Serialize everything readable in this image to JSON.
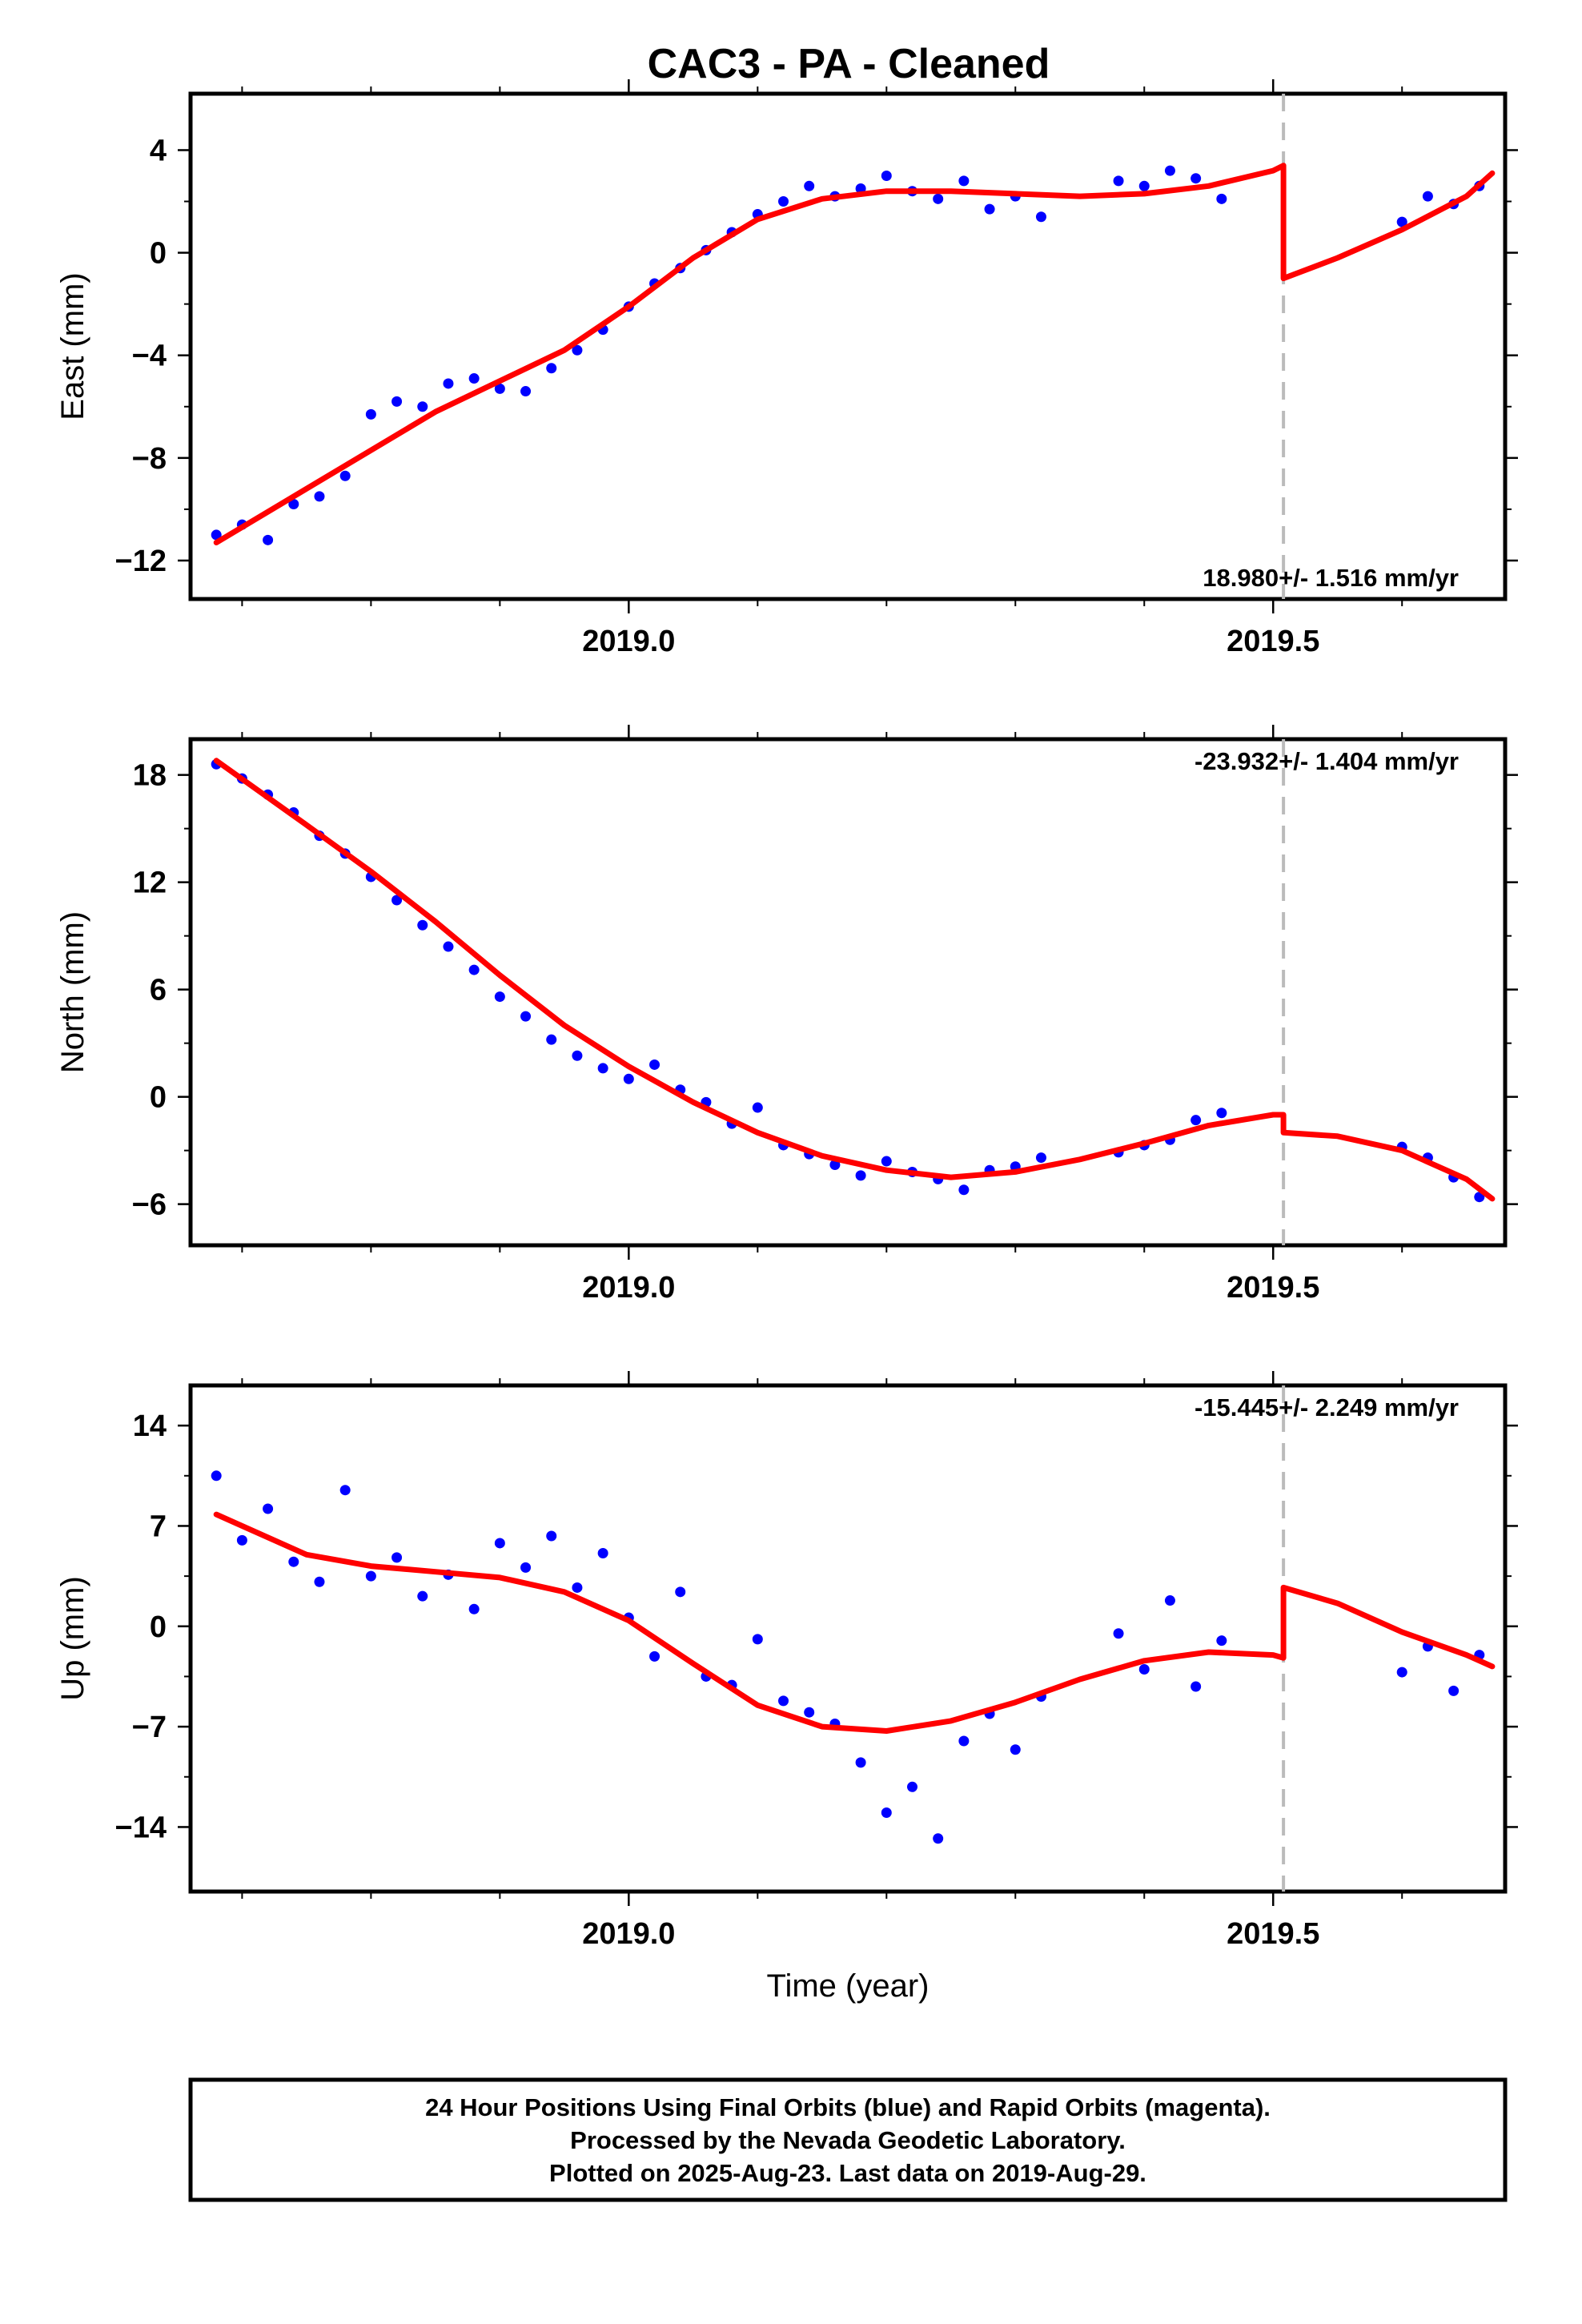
{
  "title": "CAC3  - PA - Cleaned",
  "x_axis_label": "Time (year)",
  "footer": {
    "line1": "24 Hour Positions Using Final Orbits (blue) and Rapid Orbits (magenta).",
    "line2": "Processed by the Nevada Geodetic Laboratory.",
    "line3": "Plotted on 2025-Aug-23. Last data on 2019-Aug-29."
  },
  "colors": {
    "points": "#0000ff",
    "model": "#ff0000",
    "offset_line": "#bbbbbb",
    "frame": "#000000"
  },
  "chart_data": [
    {
      "type": "scatter",
      "component": "East",
      "ylabel": "East (mm)",
      "rate_label": "18.980+/- 1.516 mm/yr",
      "xlim": [
        2018.66,
        2019.68
      ],
      "ylim": [
        -13.5,
        6.2
      ],
      "x_ticks": [
        "2019.0",
        "2019.5"
      ],
      "y_ticks": [
        4,
        0,
        -4,
        -8,
        -12
      ],
      "y_tick_labels": [
        "4",
        "0",
        "−4",
        "−8",
        "−12"
      ],
      "offset_epoch": 2019.508,
      "series": [
        {
          "name": "Final Orbits",
          "x": [
            2018.68,
            2018.7,
            2018.72,
            2018.74,
            2018.76,
            2018.78,
            2018.8,
            2018.82,
            2018.84,
            2018.86,
            2018.88,
            2018.9,
            2018.92,
            2018.94,
            2018.96,
            2018.98,
            2019.0,
            2019.02,
            2019.04,
            2019.06,
            2019.08,
            2019.1,
            2019.12,
            2019.14,
            2019.16,
            2019.18,
            2019.2,
            2019.22,
            2019.24,
            2019.26,
            2019.28,
            2019.3,
            2019.32,
            2019.38,
            2019.4,
            2019.42,
            2019.44,
            2019.46,
            2019.6,
            2019.62,
            2019.64,
            2019.66
          ],
          "y": [
            -11.0,
            -10.6,
            -11.2,
            -9.8,
            -9.5,
            -8.7,
            -6.3,
            -5.8,
            -6.0,
            -5.1,
            -4.9,
            -5.3,
            -5.4,
            -4.5,
            -3.8,
            -3.0,
            -2.1,
            -1.2,
            -0.6,
            0.1,
            0.8,
            1.5,
            2.0,
            2.6,
            2.2,
            2.5,
            3.0,
            2.4,
            2.1,
            2.8,
            1.7,
            2.2,
            1.4,
            2.8,
            2.6,
            3.2,
            2.9,
            2.1,
            1.2,
            2.2,
            1.9,
            2.6
          ]
        }
      ],
      "model": {
        "name": "Model fit",
        "x": [
          2018.68,
          2018.75,
          2018.85,
          2018.95,
          2019.0,
          2019.05,
          2019.1,
          2019.15,
          2019.2,
          2019.25,
          2019.3,
          2019.35,
          2019.4,
          2019.45,
          2019.5,
          2019.508,
          2019.508,
          2019.55,
          2019.6,
          2019.65,
          2019.67
        ],
        "y": [
          -11.3,
          -9.2,
          -6.2,
          -3.8,
          -2.1,
          -0.2,
          1.3,
          2.1,
          2.4,
          2.4,
          2.3,
          2.2,
          2.3,
          2.6,
          3.2,
          3.4,
          -1.0,
          -0.2,
          0.9,
          2.2,
          3.1
        ]
      }
    },
    {
      "type": "scatter",
      "component": "North",
      "ylabel": "North (mm)",
      "rate_label": "-23.932+/- 1.404 mm/yr",
      "xlim": [
        2018.66,
        2019.68
      ],
      "ylim": [
        -8.3,
        20.0
      ],
      "x_ticks": [
        "2019.0",
        "2019.5"
      ],
      "y_ticks": [
        18,
        12,
        6,
        0,
        -6
      ],
      "y_tick_labels": [
        "18",
        "12",
        "6",
        "0",
        "−6"
      ],
      "offset_epoch": 2019.508,
      "series": [
        {
          "name": "Final Orbits",
          "x": [
            2018.68,
            2018.7,
            2018.72,
            2018.74,
            2018.76,
            2018.78,
            2018.8,
            2018.82,
            2018.84,
            2018.86,
            2018.88,
            2018.9,
            2018.92,
            2018.94,
            2018.96,
            2018.98,
            2019.0,
            2019.02,
            2019.04,
            2019.06,
            2019.08,
            2019.1,
            2019.12,
            2019.14,
            2019.16,
            2019.18,
            2019.2,
            2019.22,
            2019.24,
            2019.26,
            2019.28,
            2019.3,
            2019.32,
            2019.38,
            2019.4,
            2019.42,
            2019.44,
            2019.46,
            2019.6,
            2019.62,
            2019.64,
            2019.66
          ],
          "y": [
            18.6,
            17.8,
            16.9,
            15.9,
            14.6,
            13.6,
            12.3,
            11.0,
            9.6,
            8.4,
            7.1,
            5.6,
            4.5,
            3.2,
            2.3,
            1.6,
            1.0,
            1.8,
            0.4,
            -0.3,
            -1.5,
            -0.6,
            -2.7,
            -3.2,
            -3.8,
            -4.4,
            -3.6,
            -4.2,
            -4.6,
            -5.2,
            -4.1,
            -3.9,
            -3.4,
            -3.1,
            -2.7,
            -2.4,
            -1.3,
            -0.9,
            -2.8,
            -3.4,
            -4.5,
            -5.6
          ]
        }
      ],
      "model": {
        "name": "Model fit",
        "x": [
          2018.68,
          2018.75,
          2018.8,
          2018.85,
          2018.9,
          2018.95,
          2019.0,
          2019.05,
          2019.1,
          2019.15,
          2019.2,
          2019.25,
          2019.3,
          2019.35,
          2019.4,
          2019.45,
          2019.5,
          2019.508,
          2019.508,
          2019.55,
          2019.6,
          2019.65,
          2019.67
        ],
        "y": [
          18.8,
          15.2,
          12.6,
          9.8,
          6.8,
          4.0,
          1.7,
          -0.3,
          -2.0,
          -3.3,
          -4.1,
          -4.5,
          -4.2,
          -3.5,
          -2.6,
          -1.6,
          -1.0,
          -1.0,
          -2.0,
          -2.2,
          -3.0,
          -4.6,
          -5.7
        ]
      }
    },
    {
      "type": "scatter",
      "component": "Up",
      "ylabel": "Up (mm)",
      "rate_label": "-15.445+/- 2.249 mm/yr",
      "xlim": [
        2018.66,
        2019.68
      ],
      "ylim": [
        -18.5,
        16.8
      ],
      "x_ticks": [
        "2019.0",
        "2019.5"
      ],
      "y_ticks": [
        14,
        7,
        0,
        -7,
        -14
      ],
      "y_tick_labels": [
        "14",
        "7",
        "0",
        "−7",
        "−14"
      ],
      "offset_epoch": 2019.508,
      "series": [
        {
          "name": "Final Orbits",
          "x": [
            2018.68,
            2018.7,
            2018.72,
            2018.74,
            2018.76,
            2018.78,
            2018.8,
            2018.82,
            2018.84,
            2018.86,
            2018.88,
            2018.9,
            2018.92,
            2018.94,
            2018.96,
            2018.98,
            2019.0,
            2019.02,
            2019.04,
            2019.06,
            2019.08,
            2019.1,
            2019.12,
            2019.14,
            2019.16,
            2019.18,
            2019.2,
            2019.22,
            2019.24,
            2019.26,
            2019.28,
            2019.3,
            2019.32,
            2019.38,
            2019.4,
            2019.42,
            2019.44,
            2019.46,
            2019.6,
            2019.62,
            2019.64,
            2019.66
          ],
          "y": [
            10.5,
            6.0,
            8.2,
            4.5,
            3.1,
            9.5,
            3.5,
            4.8,
            2.1,
            3.6,
            1.2,
            5.8,
            4.1,
            6.3,
            2.7,
            5.1,
            0.6,
            -2.1,
            2.4,
            -3.5,
            -4.1,
            -0.9,
            -5.2,
            -6.0,
            -6.8,
            -9.5,
            -13.0,
            -11.2,
            -14.8,
            -8.0,
            -6.1,
            -8.6,
            -4.9,
            -0.5,
            -3.0,
            1.8,
            -4.2,
            -1.0,
            -3.2,
            -1.4,
            -4.5,
            -2.0
          ]
        }
      ],
      "model": {
        "name": "Model fit",
        "x": [
          2018.68,
          2018.75,
          2018.8,
          2018.85,
          2018.9,
          2018.95,
          2019.0,
          2019.05,
          2019.1,
          2019.15,
          2019.2,
          2019.25,
          2019.3,
          2019.35,
          2019.4,
          2019.45,
          2019.5,
          2019.508,
          2019.508,
          2019.55,
          2019.6,
          2019.65,
          2019.67
        ],
        "y": [
          7.8,
          5.0,
          4.2,
          3.8,
          3.4,
          2.4,
          0.4,
          -2.6,
          -5.5,
          -7.0,
          -7.3,
          -6.6,
          -5.3,
          -3.7,
          -2.4,
          -1.8,
          -2.0,
          -2.2,
          2.7,
          1.6,
          -0.4,
          -2.0,
          -2.8
        ]
      }
    }
  ]
}
